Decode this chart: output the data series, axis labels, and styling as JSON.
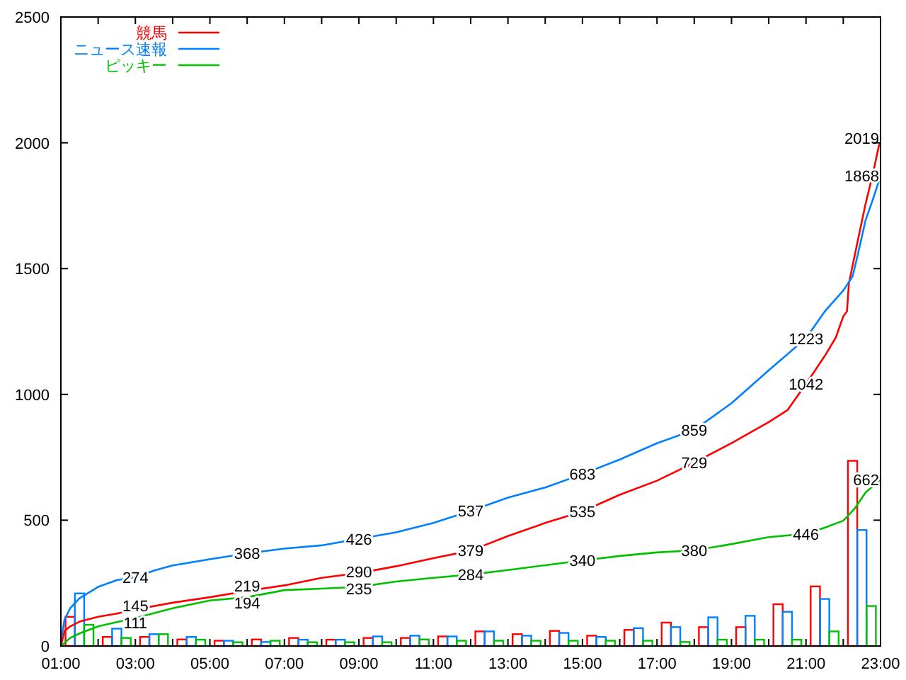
{
  "chart_data": {
    "type": "line",
    "xlim": [
      1,
      23
    ],
    "ylim": [
      0,
      2500
    ],
    "xticks": [
      {
        "value": 1,
        "label": "01:00"
      },
      {
        "value": 2,
        "label": null
      },
      {
        "value": 3,
        "label": "03:00"
      },
      {
        "value": 4,
        "label": null
      },
      {
        "value": 5,
        "label": "05:00"
      },
      {
        "value": 6,
        "label": null
      },
      {
        "value": 7,
        "label": "07:00"
      },
      {
        "value": 8,
        "label": null
      },
      {
        "value": 9,
        "label": "09:00"
      },
      {
        "value": 10,
        "label": null
      },
      {
        "value": 11,
        "label": "11:00"
      },
      {
        "value": 12,
        "label": null
      },
      {
        "value": 13,
        "label": "13:00"
      },
      {
        "value": 14,
        "label": null
      },
      {
        "value": 15,
        "label": "15:00"
      },
      {
        "value": 16,
        "label": null
      },
      {
        "value": 17,
        "label": "17:00"
      },
      {
        "value": 18,
        "label": null
      },
      {
        "value": 19,
        "label": "19:00"
      },
      {
        "value": 20,
        "label": null
      },
      {
        "value": 21,
        "label": "21:00"
      },
      {
        "value": 22,
        "label": null
      },
      {
        "value": 23,
        "label": "23:00"
      }
    ],
    "yticks": [
      0,
      500,
      1000,
      1500,
      2000,
      2500
    ],
    "legend": "top left",
    "series": [
      {
        "name": "競馬",
        "type": "line",
        "color": "#ff0000",
        "x": [
          1,
          1.1,
          1.25,
          1.5,
          2,
          2.5,
          3,
          4,
          5,
          6,
          7,
          8,
          9,
          10,
          11,
          12,
          13,
          14,
          15,
          16,
          17,
          18,
          19,
          20,
          20.5,
          21,
          21.5,
          21.8,
          22,
          22.1,
          22.15,
          22.4,
          22.6,
          22.8,
          23
        ],
        "values": [
          0,
          60,
          78,
          97,
          116,
          129,
          145,
          172,
          194,
          219,
          241,
          271,
          290,
          317,
          349,
          379,
          437,
          489,
          535,
          601,
          657,
          729,
          806,
          890,
          937,
          1042,
          1152,
          1226,
          1310,
          1330,
          1440,
          1618,
          1758,
          1880,
          2019
        ],
        "value_labels": [
          null,
          null,
          null,
          null,
          null,
          null,
          "145",
          null,
          null,
          "219",
          null,
          null,
          "290",
          null,
          null,
          "379",
          null,
          null,
          "535",
          null,
          null,
          "729",
          null,
          null,
          null,
          "1042",
          null,
          null,
          null,
          null,
          null,
          null,
          null,
          null,
          "2019"
        ]
      },
      {
        "name": "ニュース速報",
        "type": "line",
        "color": "#0080ff",
        "x": [
          1,
          1.1,
          1.25,
          1.5,
          2,
          2.5,
          3,
          3.5,
          4,
          5,
          6,
          7,
          8,
          9,
          10,
          11,
          12,
          13,
          14,
          15,
          16,
          17,
          18,
          19,
          20,
          21,
          21.5,
          22,
          22.25,
          22.4,
          22.6,
          22.8,
          23
        ],
        "values": [
          20,
          106,
          150,
          190,
          235,
          262,
          274,
          300,
          320,
          345,
          368,
          387,
          400,
          426,
          452,
          489,
          537,
          590,
          630,
          683,
          741,
          806,
          859,
          965,
          1096,
          1223,
          1329,
          1413,
          1469,
          1562,
          1693,
          1777,
          1868
        ],
        "value_labels": [
          null,
          null,
          null,
          null,
          null,
          null,
          "274",
          null,
          null,
          null,
          "368",
          null,
          null,
          "426",
          null,
          null,
          "537",
          null,
          null,
          "683",
          null,
          null,
          "859",
          null,
          null,
          "1223",
          null,
          null,
          null,
          null,
          null,
          null,
          "1868"
        ]
      },
      {
        "name": "ピッキー",
        "type": "line",
        "color": "#00c000",
        "x": [
          1,
          1.25,
          1.5,
          2,
          2.5,
          3,
          4,
          5,
          6,
          7,
          8,
          9,
          10,
          11,
          12,
          13,
          14,
          15,
          16,
          17,
          18,
          19,
          20,
          21,
          21.5,
          22,
          22.3,
          22.6,
          23
        ],
        "values": [
          0,
          32,
          50,
          78,
          95,
          111,
          150,
          181,
          194,
          222,
          228,
          235,
          256,
          271,
          284,
          302,
          321,
          340,
          358,
          372,
          380,
          405,
          433,
          446,
          470,
          498,
          545,
          610,
          662
        ],
        "value_labels": [
          null,
          null,
          null,
          null,
          null,
          "111",
          null,
          null,
          "194",
          null,
          null,
          "235",
          null,
          null,
          "284",
          null,
          null,
          "340",
          null,
          null,
          "380",
          null,
          null,
          "446",
          null,
          null,
          null,
          null,
          "662"
        ]
      },
      {
        "type": "bar",
        "color": "#ff0000",
        "x": [
          1.5,
          2.5,
          3.5,
          4.5,
          5.5,
          6.5,
          7.5,
          8.5,
          9.5,
          10.5,
          11.5,
          12.5,
          13.5,
          14.5,
          15.5,
          16.5,
          17.5,
          18.5,
          19.5,
          20.5,
          21.5,
          22.5
        ],
        "values": [
          116,
          36,
          36,
          26,
          21,
          26,
          32,
          25,
          32,
          32,
          38,
          58,
          47,
          60,
          41,
          64,
          93,
          75,
          75,
          166,
          237,
          736
        ]
      },
      {
        "type": "bar",
        "color": "#0080ff",
        "x": [
          1.5,
          2.5,
          3.5,
          4.5,
          5.5,
          6.5,
          7.5,
          8.5,
          9.5,
          10.5,
          11.5,
          12.5,
          13.5,
          14.5,
          15.5,
          16.5,
          17.5,
          18.5,
          19.5,
          20.5,
          21.5,
          22.5
        ],
        "values": [
          209,
          69,
          47,
          36,
          21,
          16,
          25,
          25,
          38,
          41,
          38,
          58,
          41,
          52,
          36,
          71,
          75,
          114,
          120,
          136,
          187,
          461
        ]
      },
      {
        "type": "bar",
        "color": "#00c000",
        "x": [
          1.5,
          2.5,
          3.5,
          4.5,
          5.5,
          6.5,
          7.5,
          8.5,
          9.5,
          10.5,
          11.5,
          12.5,
          13.5,
          14.5,
          15.5,
          16.5,
          17.5,
          18.5,
          19.5,
          20.5,
          21.5,
          22.5
        ],
        "values": [
          84,
          32,
          47,
          25,
          15,
          21,
          15,
          15,
          15,
          26,
          21,
          21,
          21,
          21,
          21,
          21,
          16,
          25,
          25,
          25,
          58,
          159
        ]
      }
    ]
  }
}
